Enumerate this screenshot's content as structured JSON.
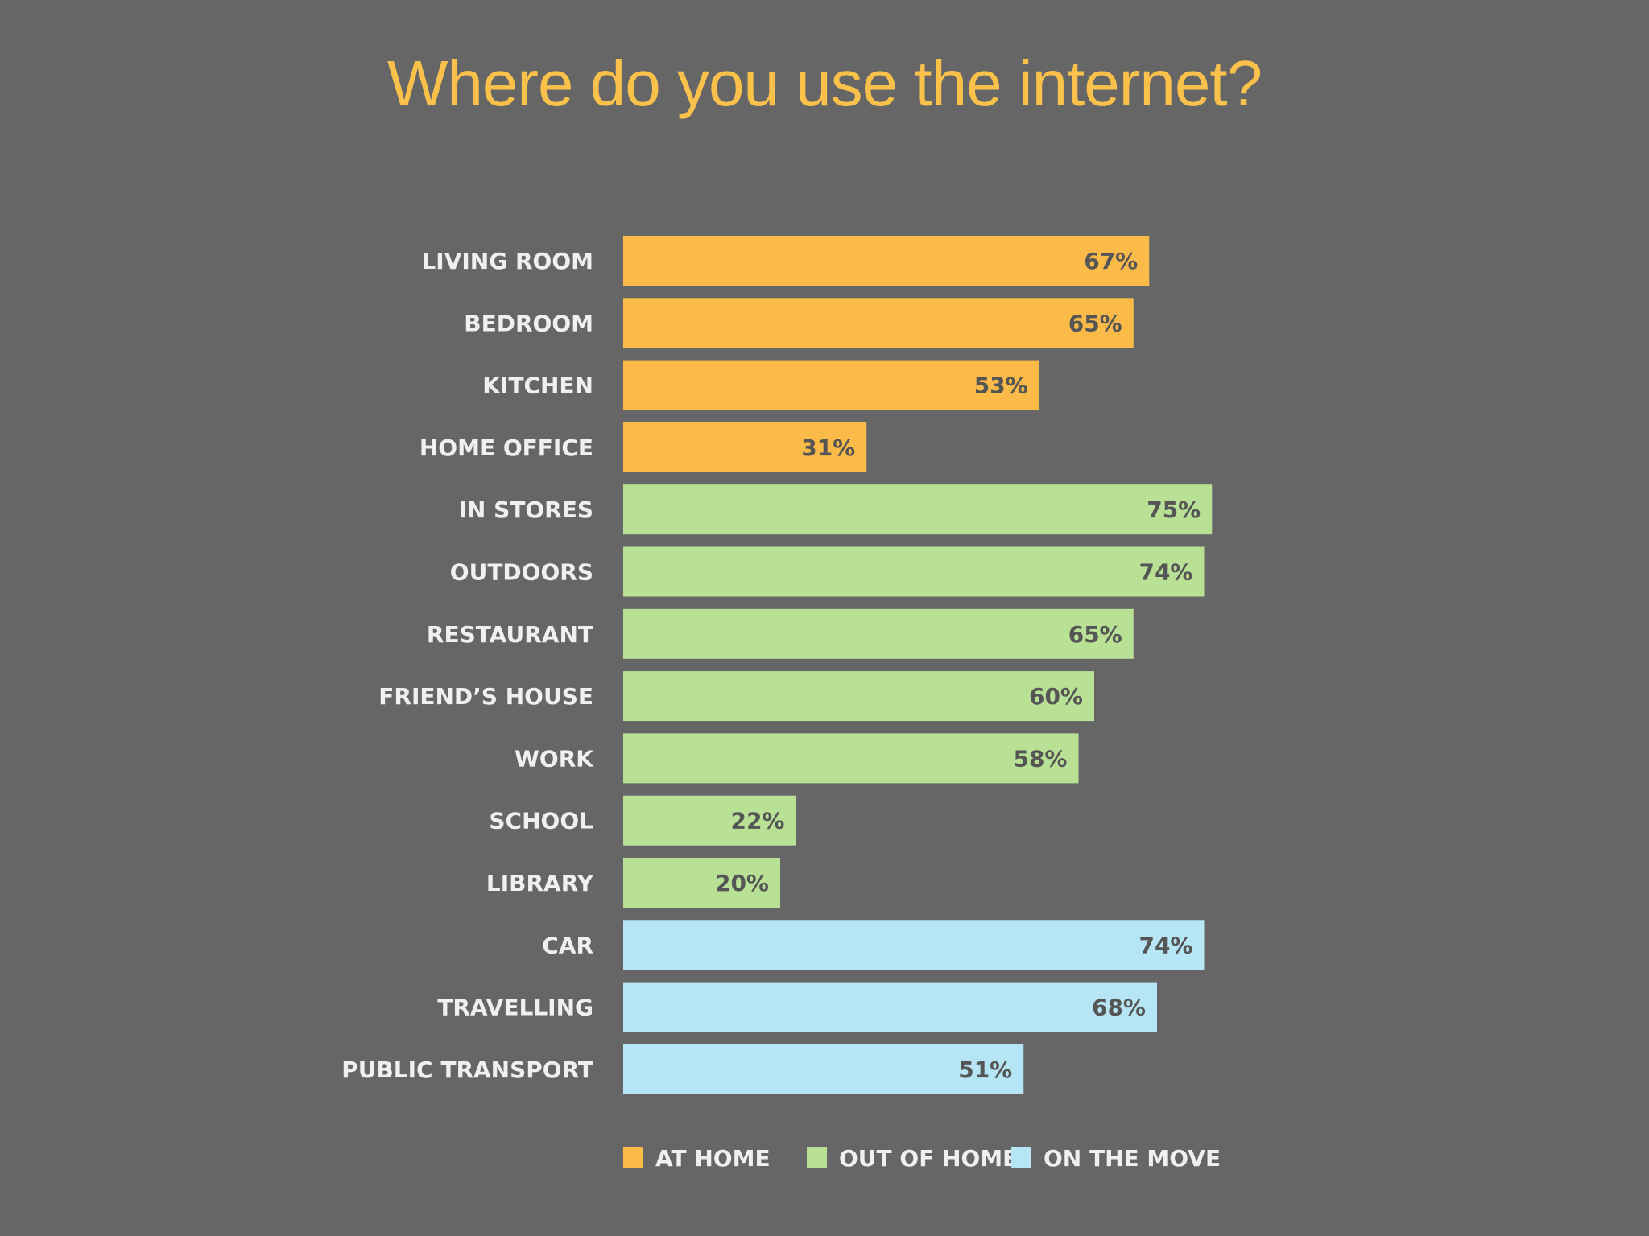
{
  "title": "Where do you use the internet?",
  "colors": {
    "background": "#666667",
    "title": "#fcc14a",
    "at_home": "#fcbb48",
    "out_of_home": "#b8e195",
    "on_the_move": "#b6e6f5"
  },
  "chart_data": {
    "type": "bar",
    "orientation": "horizontal",
    "title": "Where do you use the internet?",
    "xlim": [
      0,
      100
    ],
    "grid": false,
    "legend_position": "bottom",
    "legend": [
      {
        "name": "AT HOME",
        "group": "at_home"
      },
      {
        "name": "OUT OF HOME",
        "group": "out_of_home"
      },
      {
        "name": "ON THE MOVE",
        "group": "on_the_move"
      }
    ],
    "categories": [
      "LIVING ROOM",
      "BEDROOM",
      "KITCHEN",
      "HOME OFFICE",
      "IN STORES",
      "OUTDOORS",
      "RESTAURANT",
      "FRIEND’S HOUSE",
      "WORK",
      "SCHOOL",
      "LIBRARY",
      "CAR",
      "TRAVELLING",
      "PUBLIC TRANSPORT"
    ],
    "values": [
      67,
      65,
      53,
      31,
      75,
      74,
      65,
      60,
      58,
      22,
      20,
      74,
      68,
      51
    ],
    "value_labels": [
      "67%",
      "65%",
      "53%",
      "31%",
      "75%",
      "74%",
      "65%",
      "60%",
      "58%",
      "22%",
      "20%",
      "74%",
      "68%",
      "51%"
    ],
    "groups": [
      "at_home",
      "at_home",
      "at_home",
      "at_home",
      "out_of_home",
      "out_of_home",
      "out_of_home",
      "out_of_home",
      "out_of_home",
      "out_of_home",
      "out_of_home",
      "on_the_move",
      "on_the_move",
      "on_the_move"
    ]
  }
}
